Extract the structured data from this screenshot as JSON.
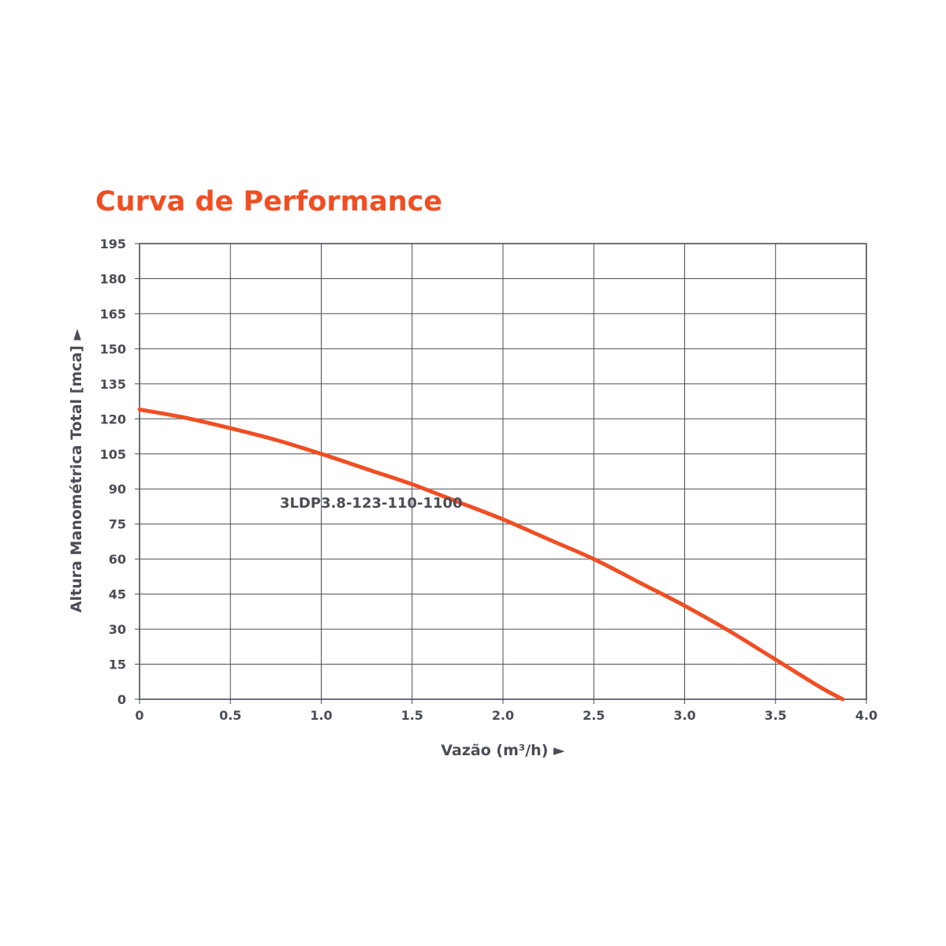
{
  "chart_data": {
    "type": "line",
    "title": "Curva de Performance",
    "xlabel": "Vazão (m³/h) ►",
    "ylabel": "Altura Manométrica Total [mca] ►",
    "xlim": [
      0,
      4.0
    ],
    "ylim": [
      0,
      195
    ],
    "x_ticks": [
      "0",
      "0.5",
      "1.0",
      "1.5",
      "2.0",
      "2.5",
      "3.0",
      "3.5",
      "4.0"
    ],
    "y_ticks": [
      "0",
      "15",
      "30",
      "45",
      "60",
      "75",
      "90",
      "105",
      "120",
      "135",
      "150",
      "165",
      "180",
      "195"
    ],
    "grid": true,
    "legend": "none",
    "annotations": [
      {
        "text": "3LDP3.8-123-110-1100",
        "x": 1.08,
        "y": 82
      }
    ],
    "series": [
      {
        "name": "3LDP3.8-123-110-1100",
        "x": [
          0,
          0.25,
          0.5,
          0.75,
          1.0,
          1.25,
          1.5,
          1.75,
          2.0,
          2.25,
          2.5,
          2.75,
          3.0,
          3.25,
          3.5,
          3.75,
          3.87
        ],
        "values": [
          124,
          120.5,
          116,
          111,
          105,
          98.5,
          92,
          84.5,
          77,
          68.5,
          60,
          50,
          40,
          29,
          17,
          5,
          0
        ]
      }
    ]
  },
  "colors": {
    "accent": "#f04e23",
    "text": "#4a4d57",
    "grid": "#4a4d57"
  }
}
